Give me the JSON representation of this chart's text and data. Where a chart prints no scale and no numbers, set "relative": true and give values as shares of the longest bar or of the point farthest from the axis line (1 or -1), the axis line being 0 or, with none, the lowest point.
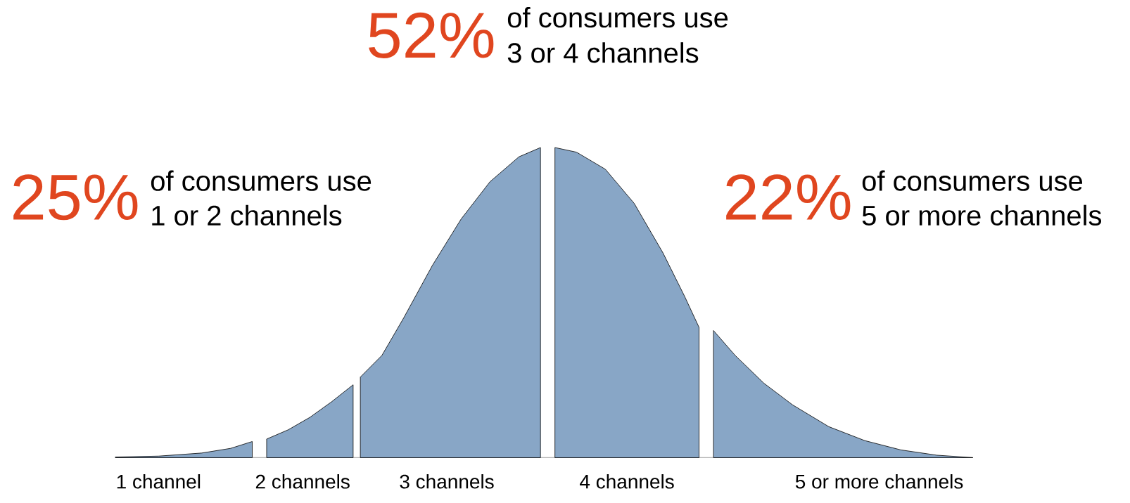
{
  "chart_data": {
    "type": "area",
    "relative": true,
    "categories": [
      null,
      null,
      null,
      null,
      null,
      null,
      "1 channel",
      null,
      null,
      null,
      null,
      null,
      null,
      null,
      null,
      null,
      null,
      null,
      null,
      null,
      null,
      null,
      null,
      null,
      null,
      null,
      "2 channels",
      null,
      null,
      null,
      null,
      null,
      null,
      null,
      null,
      null,
      null,
      null,
      null,
      null,
      null,
      null,
      null,
      null,
      null,
      null,
      "3 channels",
      null,
      null,
      null,
      null,
      null,
      null,
      null,
      null,
      null,
      null,
      null,
      null,
      null,
      null,
      null,
      null,
      null,
      null,
      null,
      null,
      null,
      null,
      null,
      null,
      "4 channels",
      null,
      null,
      null,
      null,
      null,
      null,
      null,
      null,
      null,
      null,
      null,
      null,
      null,
      null,
      null,
      null,
      null,
      null,
      null,
      null,
      null,
      null,
      null,
      null,
      null,
      null,
      null,
      null,
      null,
      null,
      null,
      null,
      null,
      null,
      "5 or more channels",
      null,
      null,
      null,
      null,
      null,
      null,
      null,
      null,
      null,
      null,
      null,
      null,
      null
    ],
    "series": [
      {
        "color": "#88a6c6",
        "values": [
          0.002,
          null,
          null,
          null,
          null,
          null,
          0.005,
          null,
          null,
          null,
          null,
          null,
          0.015,
          null,
          null,
          null,
          0.03,
          null,
          null,
          0.052,
          null,
          null,
          null,
          null,
          null,
          null,
          null,
          null,
          null,
          null,
          null,
          null,
          null,
          null,
          null,
          null,
          null,
          null,
          null,
          null,
          null,
          null,
          null,
          null,
          null,
          null,
          null,
          null,
          null,
          null,
          null,
          null,
          null,
          null,
          null,
          null,
          null,
          null,
          null,
          null,
          null,
          null,
          null,
          null,
          null,
          null,
          null,
          null,
          null,
          null,
          null,
          null,
          null,
          null,
          null,
          null,
          null,
          null,
          null,
          null,
          null,
          null,
          null,
          null,
          null,
          null,
          null,
          null,
          null,
          null,
          null,
          null,
          null,
          null,
          null,
          null,
          null,
          null,
          null,
          null,
          null,
          null,
          null,
          null,
          null,
          null,
          null,
          null,
          null,
          null,
          null,
          null,
          null,
          null,
          null,
          null,
          null,
          null,
          null,
          null
        ]
      },
      {
        "color": "#88a6c6",
        "values": [
          null,
          null,
          null,
          null,
          null,
          null,
          null,
          null,
          null,
          null,
          null,
          null,
          null,
          null,
          null,
          null,
          null,
          null,
          null,
          null,
          null,
          0.06,
          null,
          null,
          0.09,
          null,
          null,
          0.13,
          null,
          null,
          0.18,
          null,
          null,
          0.235,
          null,
          null,
          null,
          null,
          null,
          null,
          null,
          null,
          null,
          null,
          null,
          null,
          null,
          null,
          null,
          null,
          null,
          null,
          null,
          null,
          null,
          null,
          null,
          null,
          null,
          null,
          null,
          null,
          null,
          null,
          null,
          null,
          null,
          null,
          null,
          null,
          null,
          null,
          null,
          null,
          null,
          null,
          null,
          null,
          null,
          null,
          null,
          null,
          null,
          null,
          null,
          null,
          null,
          null,
          null,
          null,
          null,
          null,
          null,
          null,
          null,
          null,
          null,
          null,
          null,
          null,
          null,
          null,
          null,
          null,
          null,
          null,
          null,
          null,
          null,
          null,
          null,
          null,
          null,
          null,
          null,
          null,
          null,
          null,
          null,
          null
        ]
      },
      {
        "color": "#88a6c6",
        "values": [
          null,
          null,
          null,
          null,
          null,
          null,
          null,
          null,
          null,
          null,
          null,
          null,
          null,
          null,
          null,
          null,
          null,
          null,
          null,
          null,
          null,
          null,
          null,
          null,
          null,
          null,
          null,
          null,
          null,
          null,
          null,
          null,
          null,
          null,
          0.26,
          null,
          null,
          0.33,
          null,
          null,
          0.45,
          null,
          null,
          null,
          0.62,
          null,
          null,
          null,
          0.77,
          null,
          null,
          null,
          0.89,
          null,
          null,
          null,
          0.97,
          null,
          null,
          1.0,
          null,
          null,
          null,
          null,
          null,
          null,
          null,
          null,
          null,
          null,
          null,
          null,
          null,
          null,
          null,
          null,
          null,
          null,
          null,
          null,
          null,
          null,
          null,
          null,
          null,
          null,
          null,
          null,
          null,
          null,
          null,
          null,
          null,
          null,
          null,
          null,
          null,
          null,
          null,
          null,
          null,
          null,
          null,
          null,
          null,
          null,
          null,
          null,
          null,
          null,
          null,
          null,
          null,
          null,
          null,
          null,
          null,
          null,
          null,
          null
        ]
      },
      {
        "color": "#88a6c6",
        "values": [
          null,
          null,
          null,
          null,
          null,
          null,
          null,
          null,
          null,
          null,
          null,
          null,
          null,
          null,
          null,
          null,
          null,
          null,
          null,
          null,
          null,
          null,
          null,
          null,
          null,
          null,
          null,
          null,
          null,
          null,
          null,
          null,
          null,
          null,
          null,
          null,
          null,
          null,
          null,
          null,
          null,
          null,
          null,
          null,
          null,
          null,
          null,
          null,
          null,
          null,
          null,
          null,
          null,
          null,
          null,
          null,
          null,
          null,
          null,
          null,
          null,
          1.0,
          null,
          null,
          0.985,
          null,
          null,
          null,
          0.93,
          null,
          null,
          null,
          0.82,
          null,
          null,
          null,
          0.66,
          null,
          null,
          0.52,
          null,
          0.42,
          null,
          null,
          null,
          null,
          null,
          null,
          null,
          null,
          null,
          null,
          null,
          null,
          null,
          null,
          null,
          null,
          null,
          null,
          null,
          null,
          null,
          null,
          null,
          null,
          null,
          null,
          null,
          null,
          null,
          null,
          null,
          null,
          null,
          null,
          null,
          null,
          null,
          null
        ]
      },
      {
        "color": "#88a6c6",
        "values": [
          null,
          null,
          null,
          null,
          null,
          null,
          null,
          null,
          null,
          null,
          null,
          null,
          null,
          null,
          null,
          null,
          null,
          null,
          null,
          null,
          null,
          null,
          null,
          null,
          null,
          null,
          null,
          null,
          null,
          null,
          null,
          null,
          null,
          null,
          null,
          null,
          null,
          null,
          null,
          null,
          null,
          null,
          null,
          null,
          null,
          null,
          null,
          null,
          null,
          null,
          null,
          null,
          null,
          null,
          null,
          null,
          null,
          null,
          null,
          null,
          null,
          null,
          null,
          null,
          null,
          null,
          null,
          null,
          null,
          null,
          null,
          null,
          null,
          null,
          null,
          null,
          null,
          null,
          null,
          null,
          null,
          null,
          null,
          0.41,
          null,
          null,
          0.33,
          null,
          null,
          null,
          0.24,
          null,
          null,
          null,
          0.17,
          null,
          null,
          null,
          null,
          0.1,
          null,
          null,
          null,
          null,
          0.055,
          null,
          null,
          null,
          null,
          0.025,
          null,
          null,
          null,
          null,
          0.008,
          null,
          null,
          null,
          null,
          0.0
        ]
      }
    ],
    "annotations": [
      "52%",
      "of consumers use",
      "3 or 4 channels",
      "25%",
      "of consumers use",
      "1 or 2 channels",
      "22%",
      "of consumers use",
      "5 or more channels"
    ]
  }
}
